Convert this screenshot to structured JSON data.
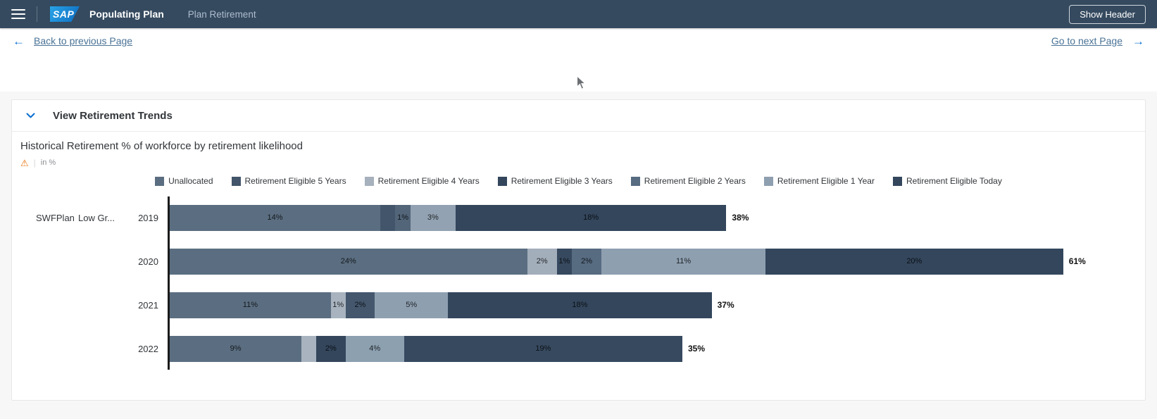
{
  "shellbar": {
    "logo": "SAP",
    "title": "Populating Plan",
    "nav_tab": "Plan Retirement",
    "show_header_button": "Show Header"
  },
  "pagenav": {
    "back_arrow": "←",
    "back_label": "Back to previous Page",
    "next_label": "Go to next Page",
    "next_arrow": "→"
  },
  "panel": {
    "title": "View Retirement Trends"
  },
  "chart_data": {
    "type": "bar",
    "variant": "horizontal-stacked",
    "title": "Historical Retirement % of workforce by retirement likelihood",
    "unit_label": "in %",
    "warning_icon": "⚠",
    "legend_position": "top-center",
    "grid": false,
    "x_axis": {
      "unit": "%",
      "max_total": 61
    },
    "row_group": {
      "plan": "SWFPlan",
      "scenario": "Low Gr..."
    },
    "legend": [
      {
        "name": "Unallocated",
        "color": "#5b6e81"
      },
      {
        "name": "Retirement Eligible 5 Years",
        "color": "#42556a"
      },
      {
        "name": "Retirement Eligible 4 Years",
        "color": "#a6b1bd"
      },
      {
        "name": "Retirement Eligible 3 Years",
        "color": "#33465c"
      },
      {
        "name": "Retirement Eligible 2 Years",
        "color": "#576b81"
      },
      {
        "name": "Retirement Eligible 1 Year",
        "color": "#8e9fb0"
      },
      {
        "name": "Retirement Eligible Today",
        "color": "#33465c"
      }
    ],
    "categories": [
      "2019",
      "2020",
      "2021",
      "2022"
    ],
    "rows": [
      {
        "year": "2019",
        "total": 38,
        "total_label": "38%",
        "segments": [
          {
            "series": "Unallocated",
            "value": 14,
            "label": "14%",
            "color": "#5b6e81"
          },
          {
            "series": "Retirement Eligible 5 Years",
            "value": 1,
            "label": "",
            "color": "#42556a"
          },
          {
            "series": "Retirement Eligible 2 Years",
            "value": 1,
            "label": "1%",
            "color": "#526579"
          },
          {
            "series": "Retirement Eligible 1 Year",
            "value": 3,
            "label": "3%",
            "color": "#92a2b2"
          },
          {
            "series": "Retirement Eligible Today",
            "value": 18,
            "label": "18%",
            "color": "#33465c"
          }
        ]
      },
      {
        "year": "2020",
        "total": 61,
        "total_label": "61%",
        "segments": [
          {
            "series": "Unallocated",
            "value": 24,
            "label": "24%",
            "color": "#5b6e81"
          },
          {
            "series": "Retirement Eligible 4 Years",
            "value": 2,
            "label": "2%",
            "color": "#a3aebb"
          },
          {
            "series": "Retirement Eligible 3 Years",
            "value": 1,
            "label": "1%",
            "color": "#36495f"
          },
          {
            "series": "Retirement Eligible 2 Years",
            "value": 2,
            "label": "2%",
            "color": "#576b81"
          },
          {
            "series": "Retirement Eligible 1 Year",
            "value": 11,
            "label": "11%",
            "color": "#8e9fb0"
          },
          {
            "series": "Retirement Eligible Today",
            "value": 20,
            "label": "20%",
            "color": "#33465c"
          }
        ]
      },
      {
        "year": "2021",
        "total": 37,
        "total_label": "37%",
        "segments": [
          {
            "series": "Unallocated",
            "value": 11,
            "label": "11%",
            "color": "#5b6e81"
          },
          {
            "series": "Retirement Eligible 4 Years",
            "value": 1,
            "label": "1%",
            "color": "#a8b3bf"
          },
          {
            "series": "Retirement Eligible 3 Years",
            "value": 2,
            "label": "2%",
            "color": "#44576d"
          },
          {
            "series": "Retirement Eligible 1 Year",
            "value": 5,
            "label": "5%",
            "color": "#8e9fb0"
          },
          {
            "series": "Retirement Eligible Today",
            "value": 18,
            "label": "18%",
            "color": "#33465c"
          }
        ]
      },
      {
        "year": "2022",
        "total": 35,
        "total_label": "35%",
        "segments": [
          {
            "series": "Unallocated",
            "value": 9,
            "label": "9%",
            "color": "#5b6e81"
          },
          {
            "series": "Retirement Eligible 4 Years",
            "value": 1,
            "label": "",
            "color": "#a8b3bf"
          },
          {
            "series": "Retirement Eligible 3 Years",
            "value": 2,
            "label": "2%",
            "color": "#33465c"
          },
          {
            "series": "Retirement Eligible 1 Year",
            "value": 4,
            "label": "4%",
            "color": "#8ca0b0"
          },
          {
            "series": "Retirement Eligible Today",
            "value": 19,
            "label": "19%",
            "color": "#36495f"
          }
        ]
      }
    ]
  },
  "colors": {
    "shellbar_bg": "#354a5f",
    "accent_blue": "#0a6ed1",
    "link_blue": "#4a7396",
    "warning_orange": "#e9730c"
  }
}
